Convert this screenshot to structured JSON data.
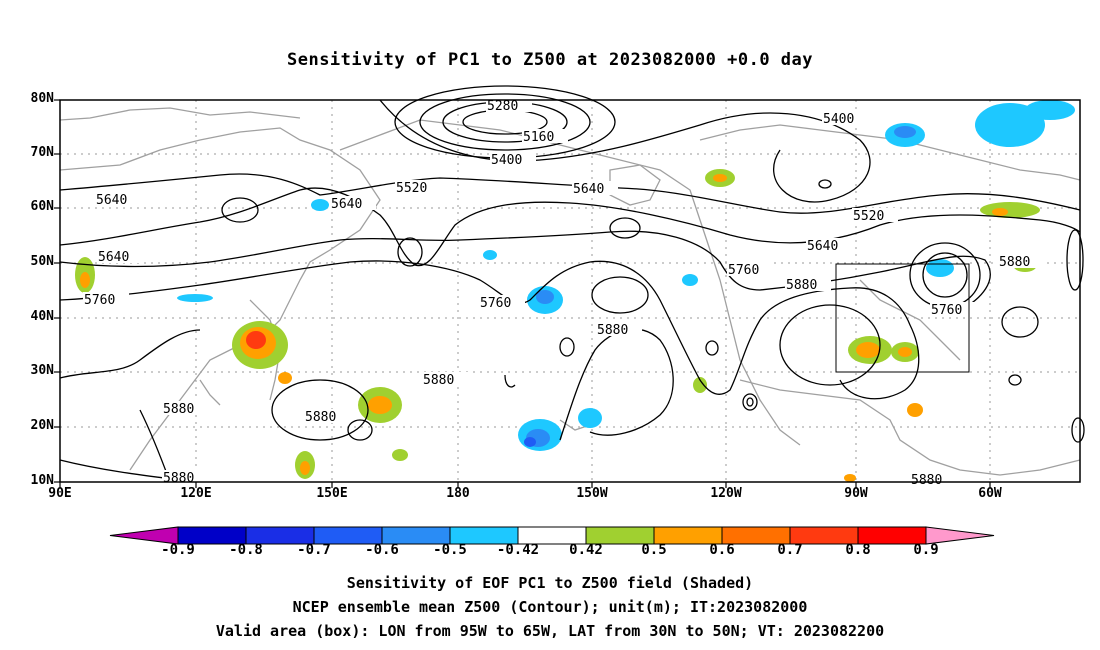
{
  "title": "Sensitivity of PC1 to Z500 at 2023082000 +0.0 day",
  "map": {
    "lon_range": [
      "90E",
      "50W"
    ],
    "lat_range": [
      "10N",
      "80N"
    ],
    "lat_ticks": [
      "80N",
      "70N",
      "60N",
      "50N",
      "40N",
      "30N",
      "20N",
      "10N"
    ],
    "lon_ticks": [
      "90E",
      "120E",
      "150E",
      "180",
      "150W",
      "120W",
      "90W",
      "60W"
    ],
    "valid_box": {
      "lon_from": "95W",
      "lon_to": "65W",
      "lat_from": "30N",
      "lat_to": "50N"
    },
    "contour_labels": [
      "5280",
      "5160",
      "5400",
      "5400",
      "5520",
      "5640",
      "5640",
      "5520",
      "5640",
      "5640",
      "5640",
      "5760",
      "5760",
      "5760",
      "5760",
      "5880",
      "5880",
      "5880",
      "5880",
      "5880",
      "5880",
      "5880",
      "5880"
    ],
    "colors": {
      "contour": "#000000",
      "coast": "#a0a0a0",
      "grid": "#9a9a9a"
    }
  },
  "colorbar": {
    "labels": [
      "-0.9",
      "-0.8",
      "-0.7",
      "-0.6",
      "-0.5",
      "-0.42",
      "0.42",
      "0.5",
      "0.6",
      "0.7",
      "0.8",
      "0.9"
    ],
    "colors": [
      "#c000b0",
      "#0000c8",
      "#1a2ee6",
      "#1f5cf5",
      "#2a8cf5",
      "#1ec8ff",
      "#ffffff",
      "#a0d030",
      "#ffa000",
      "#ff7000",
      "#ff3a10",
      "#ff0000",
      "#ff99cc"
    ]
  },
  "footer": {
    "line1": "Sensitivity of EOF PC1 to Z500 field (Shaded)",
    "line2": "NCEP ensemble mean Z500 (Contour); unit(m); IT:2023082000",
    "line3": "Valid area (box): LON from 95W to 65W, LAT from 30N to 50N; VT: 2023082200"
  }
}
